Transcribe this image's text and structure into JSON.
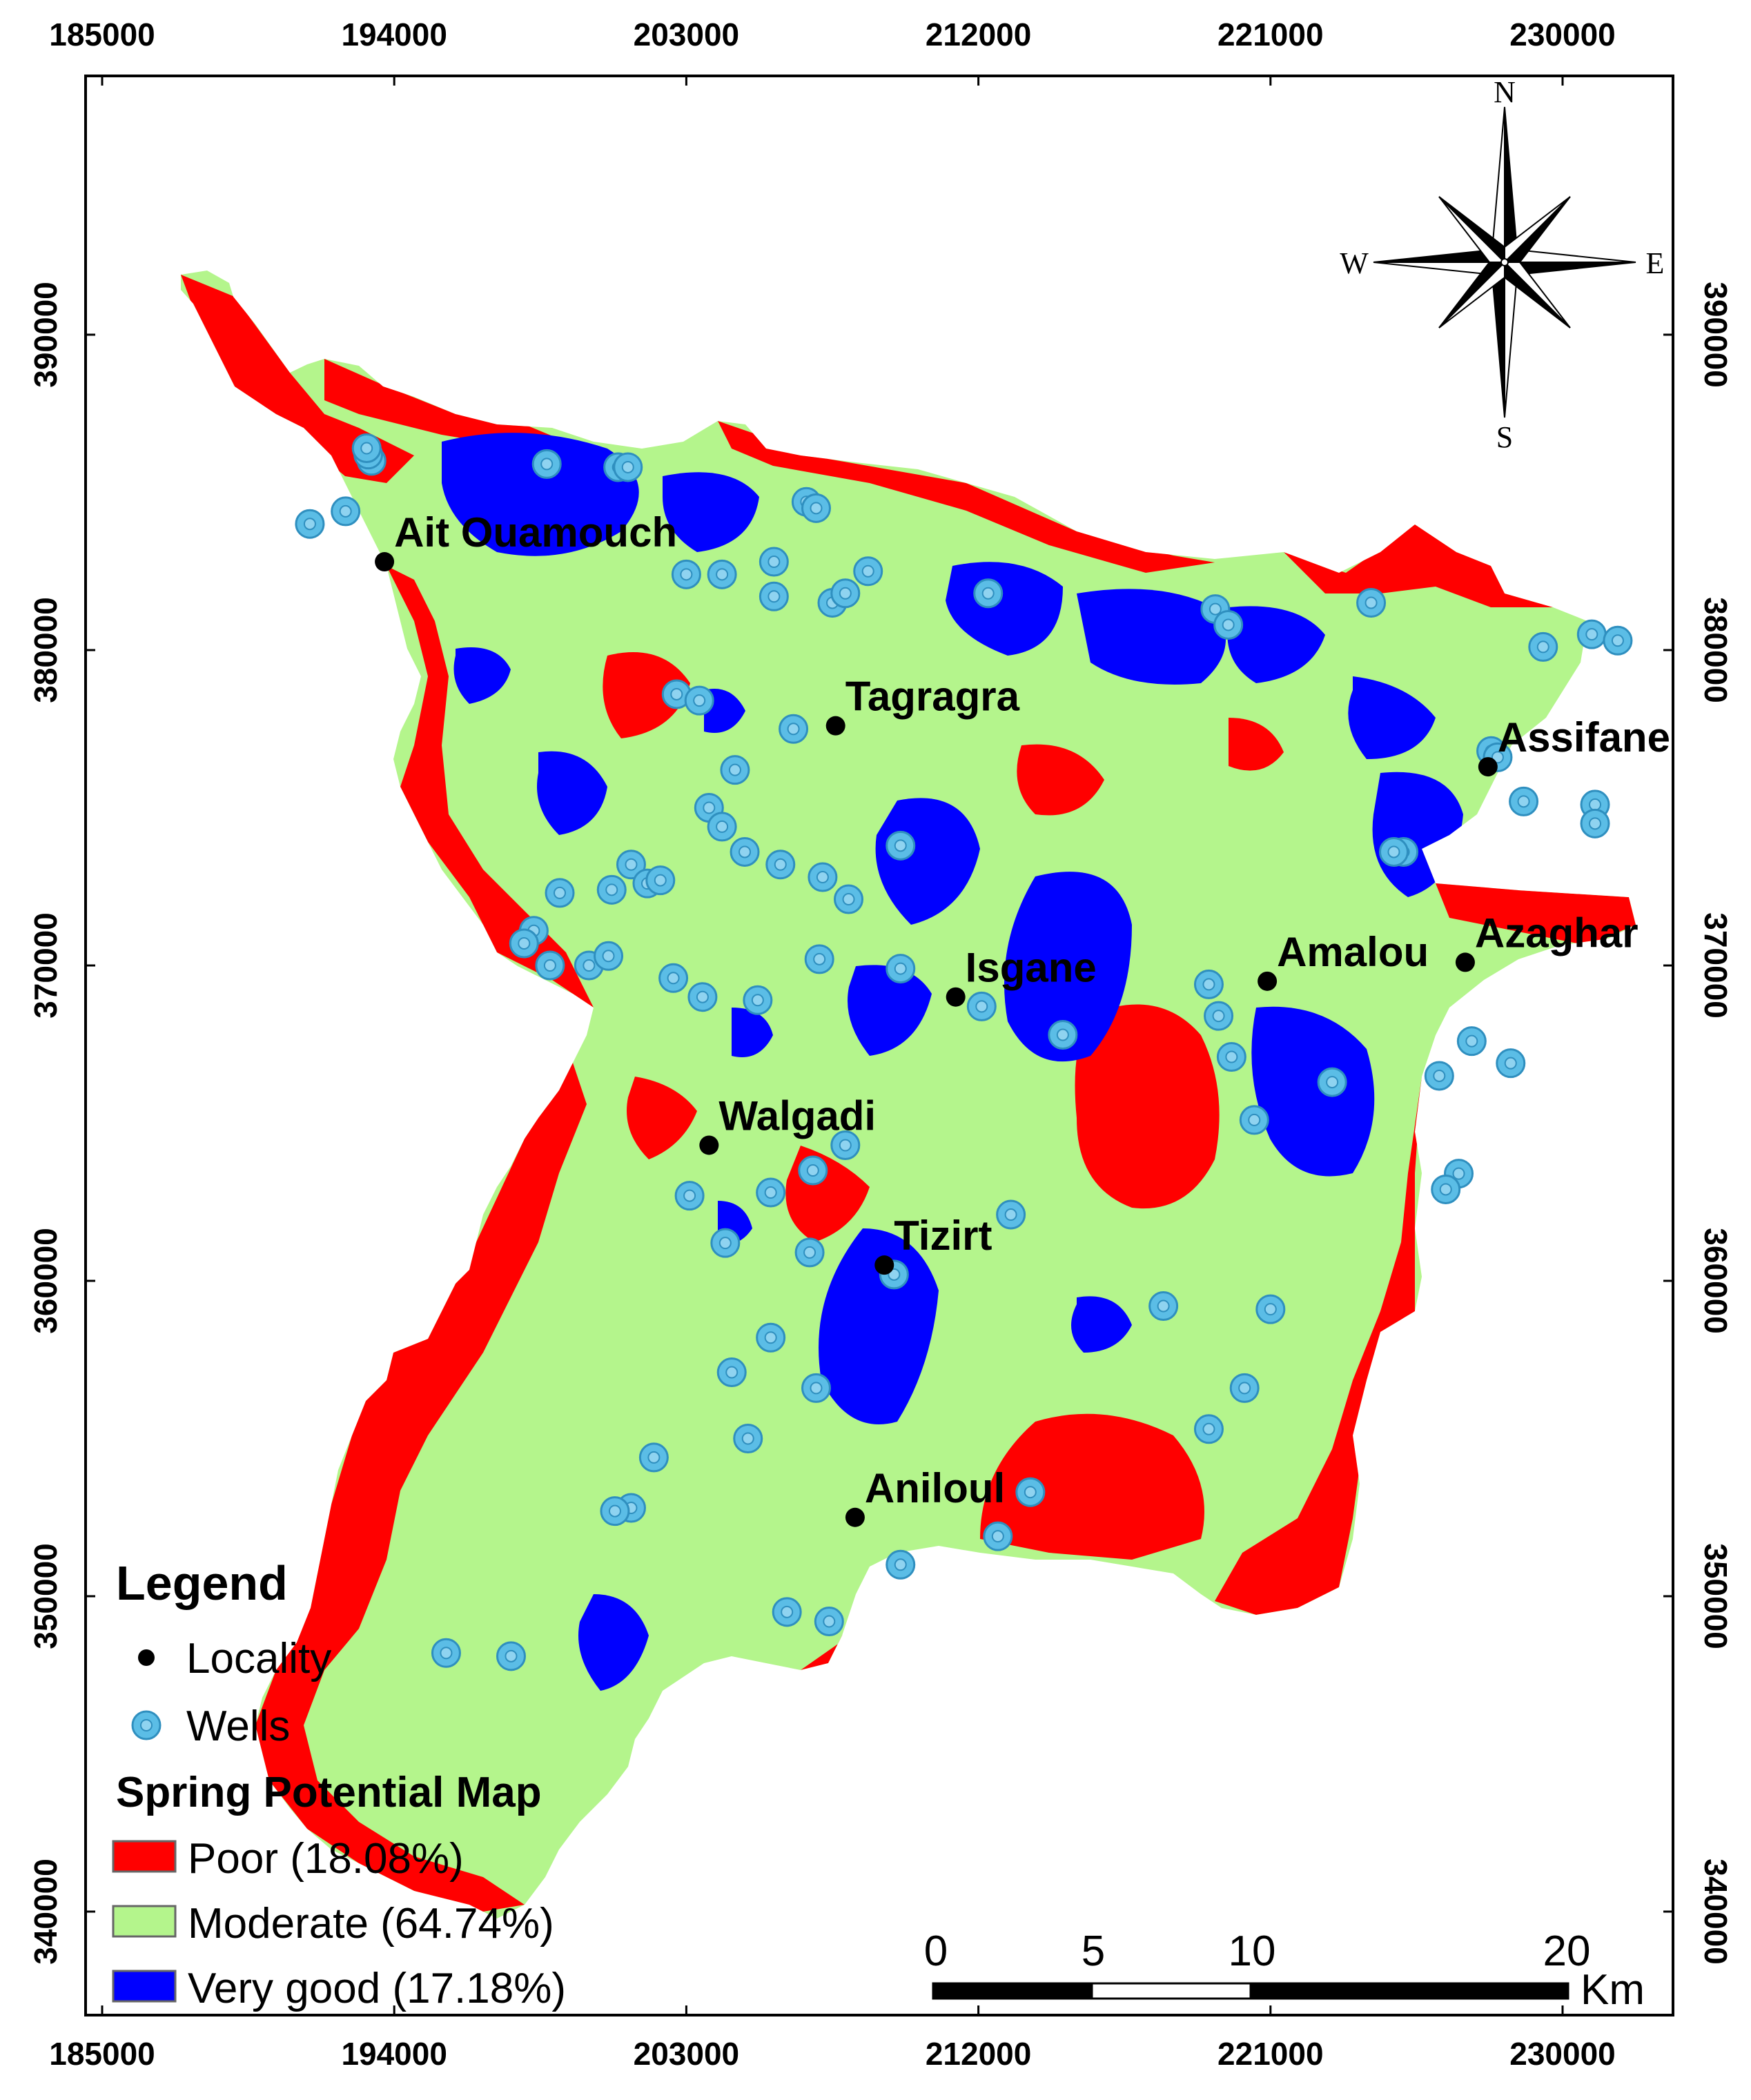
{
  "axes": {
    "x_ticks": [
      {
        "value": 185000,
        "label": "185000"
      },
      {
        "value": 194000,
        "label": "194000"
      },
      {
        "value": 203000,
        "label": "203000"
      },
      {
        "value": 212000,
        "label": "212000"
      },
      {
        "value": 221000,
        "label": "221000"
      },
      {
        "value": 230000,
        "label": "230000"
      }
    ],
    "y_ticks": [
      {
        "value": 390000,
        "label": "390000"
      },
      {
        "value": 380000,
        "label": "380000"
      },
      {
        "value": 370000,
        "label": "370000"
      },
      {
        "value": 360000,
        "label": "360000"
      },
      {
        "value": 350000,
        "label": "350000"
      },
      {
        "value": 340000,
        "label": "340000"
      }
    ]
  },
  "compass": {
    "north": "N",
    "south": "S",
    "east": "E",
    "west": "W"
  },
  "localities": [
    {
      "name": "Ait Ouamouch",
      "x": 193700,
      "y": 382800
    },
    {
      "name": "Tagragra",
      "x": 207600,
      "y": 377600
    },
    {
      "name": "Assifane",
      "x": 227700,
      "y": 376300
    },
    {
      "name": "Isgane",
      "x": 211300,
      "y": 369000
    },
    {
      "name": "Amalou",
      "x": 220900,
      "y": 369500
    },
    {
      "name": "Azaghar",
      "x": 227000,
      "y": 370100
    },
    {
      "name": "Walgadi",
      "x": 203700,
      "y": 364300
    },
    {
      "name": "Tizirt",
      "x": 209100,
      "y": 360500
    },
    {
      "name": "Aniloul",
      "x": 208200,
      "y": 352500
    }
  ],
  "wells": [
    [
      193300,
      386000
    ],
    [
      193200,
      386200
    ],
    [
      193150,
      386400
    ],
    [
      191400,
      384000
    ],
    [
      192500,
      384400
    ],
    [
      200900,
      385800
    ],
    [
      201200,
      385800
    ],
    [
      203000,
      382400
    ],
    [
      204100,
      382400
    ],
    [
      205700,
      382800
    ],
    [
      206700,
      384700
    ],
    [
      207000,
      384500
    ],
    [
      198700,
      385900
    ],
    [
      202700,
      378600
    ],
    [
      203400,
      378400
    ],
    [
      205700,
      381700
    ],
    [
      207500,
      381500
    ],
    [
      207900,
      381800
    ],
    [
      208600,
      382500
    ],
    [
      212300,
      381800
    ],
    [
      219300,
      381300
    ],
    [
      219700,
      380800
    ],
    [
      224100,
      381500
    ],
    [
      229400,
      380100
    ],
    [
      230900,
      380500
    ],
    [
      231700,
      380300
    ],
    [
      204500,
      376200
    ],
    [
      206300,
      377500
    ],
    [
      203700,
      375000
    ],
    [
      204100,
      374400
    ],
    [
      204800,
      373600
    ],
    [
      205900,
      373200
    ],
    [
      207200,
      372800
    ],
    [
      208000,
      372100
    ],
    [
      209600,
      373800
    ],
    [
      201300,
      373200
    ],
    [
      201800,
      372600
    ],
    [
      202200,
      372700
    ],
    [
      200700,
      372400
    ],
    [
      199100,
      372300
    ],
    [
      198300,
      371100
    ],
    [
      198000,
      370700
    ],
    [
      198800,
      370000
    ],
    [
      200000,
      370000
    ],
    [
      200600,
      370300
    ],
    [
      202600,
      369600
    ],
    [
      203500,
      369000
    ],
    [
      205200,
      368900
    ],
    [
      207100,
      370200
    ],
    [
      209600,
      369900
    ],
    [
      212100,
      368700
    ],
    [
      214600,
      367800
    ],
    [
      219100,
      369400
    ],
    [
      219400,
      368400
    ],
    [
      219800,
      367100
    ],
    [
      220500,
      365100
    ],
    [
      222900,
      366300
    ],
    [
      226200,
      366500
    ],
    [
      226800,
      363400
    ],
    [
      226400,
      362900
    ],
    [
      207900,
      364300
    ],
    [
      206900,
      363500
    ],
    [
      205600,
      362800
    ],
    [
      203100,
      362700
    ],
    [
      204200,
      361200
    ],
    [
      206800,
      360900
    ],
    [
      209400,
      360200
    ],
    [
      213000,
      362100
    ],
    [
      217700,
      359200
    ],
    [
      221000,
      359100
    ],
    [
      205600,
      358200
    ],
    [
      204400,
      357100
    ],
    [
      207000,
      356600
    ],
    [
      204900,
      355000
    ],
    [
      219100,
      355300
    ],
    [
      220200,
      356600
    ],
    [
      202000,
      354400
    ],
    [
      201300,
      352800
    ],
    [
      200800,
      352700
    ],
    [
      213600,
      353300
    ],
    [
      212600,
      351900
    ],
    [
      209600,
      351000
    ],
    [
      206100,
      349500
    ],
    [
      207400,
      349200
    ],
    [
      197600,
      348100
    ],
    [
      195600,
      348200
    ],
    [
      228800,
      375200
    ],
    [
      227800,
      376800
    ],
    [
      228000,
      376600
    ],
    [
      231000,
      375100
    ],
    [
      231000,
      374500
    ],
    [
      228400,
      366900
    ],
    [
      227200,
      367600
    ],
    [
      225100,
      373600
    ],
    [
      224800,
      373600
    ]
  ],
  "legend": {
    "title": "Legend",
    "locality_label": "Locality",
    "wells_label": "Wells",
    "map_title": "Spring Potential Map",
    "classes": [
      {
        "label": "Poor (18.08%)",
        "color": "#ff0000",
        "percent": 18.08
      },
      {
        "label": "Moderate (64.74%)",
        "color": "#b4f58c",
        "percent": 64.74
      },
      {
        "label": "Very good (17.18%)",
        "color": "#0000ff",
        "percent": 17.18
      }
    ]
  },
  "scalebar": {
    "labels": [
      "0",
      "5",
      "10",
      "20"
    ],
    "unit": "Km"
  },
  "colors": {
    "poor": "#ff0000",
    "moderate": "#b4f58c",
    "very_good": "#0000ff",
    "well_fill": "#5bbde6",
    "well_center": "#8fd3f0",
    "locality": "#000000"
  }
}
